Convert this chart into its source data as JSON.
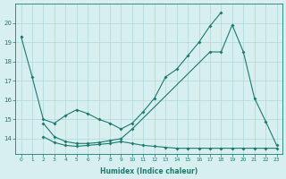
{
  "l1_x": [
    0,
    1,
    2,
    3,
    4,
    5,
    6,
    7,
    8,
    9,
    10,
    11,
    12,
    13,
    14,
    15,
    16,
    17,
    18
  ],
  "l1_y": [
    19.3,
    17.2,
    15.0,
    14.8,
    15.2,
    15.5,
    15.3,
    15.0,
    14.8,
    14.5,
    14.8,
    15.4,
    16.1,
    17.2,
    17.6,
    18.3,
    19.0,
    19.85,
    20.55
  ],
  "l2_x": [
    2,
    3,
    4,
    5,
    6,
    7,
    8,
    9,
    10,
    17,
    18,
    19,
    20,
    21,
    22,
    23
  ],
  "l2_y": [
    14.8,
    14.1,
    13.85,
    13.75,
    13.75,
    13.8,
    13.9,
    14.0,
    14.5,
    18.5,
    18.5,
    19.9,
    18.5,
    16.1,
    14.9,
    13.65
  ],
  "l3_x": [
    2,
    3,
    4,
    5,
    6,
    7,
    8,
    9,
    10,
    11,
    12,
    13,
    14,
    15,
    16,
    17,
    18,
    19,
    20,
    21,
    22,
    23
  ],
  "l3_y": [
    14.1,
    13.8,
    13.65,
    13.6,
    13.65,
    13.7,
    13.75,
    13.85,
    13.75,
    13.65,
    13.6,
    13.55,
    13.5,
    13.5,
    13.5,
    13.5,
    13.5,
    13.5,
    13.5,
    13.5,
    13.5,
    13.5
  ],
  "line_color": "#1a7a6e",
  "bg_color": "#d8eff0",
  "grid_color": "#b0d8da",
  "xlabel": "Humidex (Indice chaleur)",
  "xlim": [
    -0.5,
    23.5
  ],
  "ylim": [
    13.2,
    21.0
  ],
  "yticks": [
    14,
    15,
    16,
    17,
    18,
    19,
    20
  ],
  "xticks": [
    0,
    1,
    2,
    3,
    4,
    5,
    6,
    7,
    8,
    9,
    10,
    11,
    12,
    13,
    14,
    15,
    16,
    17,
    18,
    19,
    20,
    21,
    22,
    23
  ]
}
